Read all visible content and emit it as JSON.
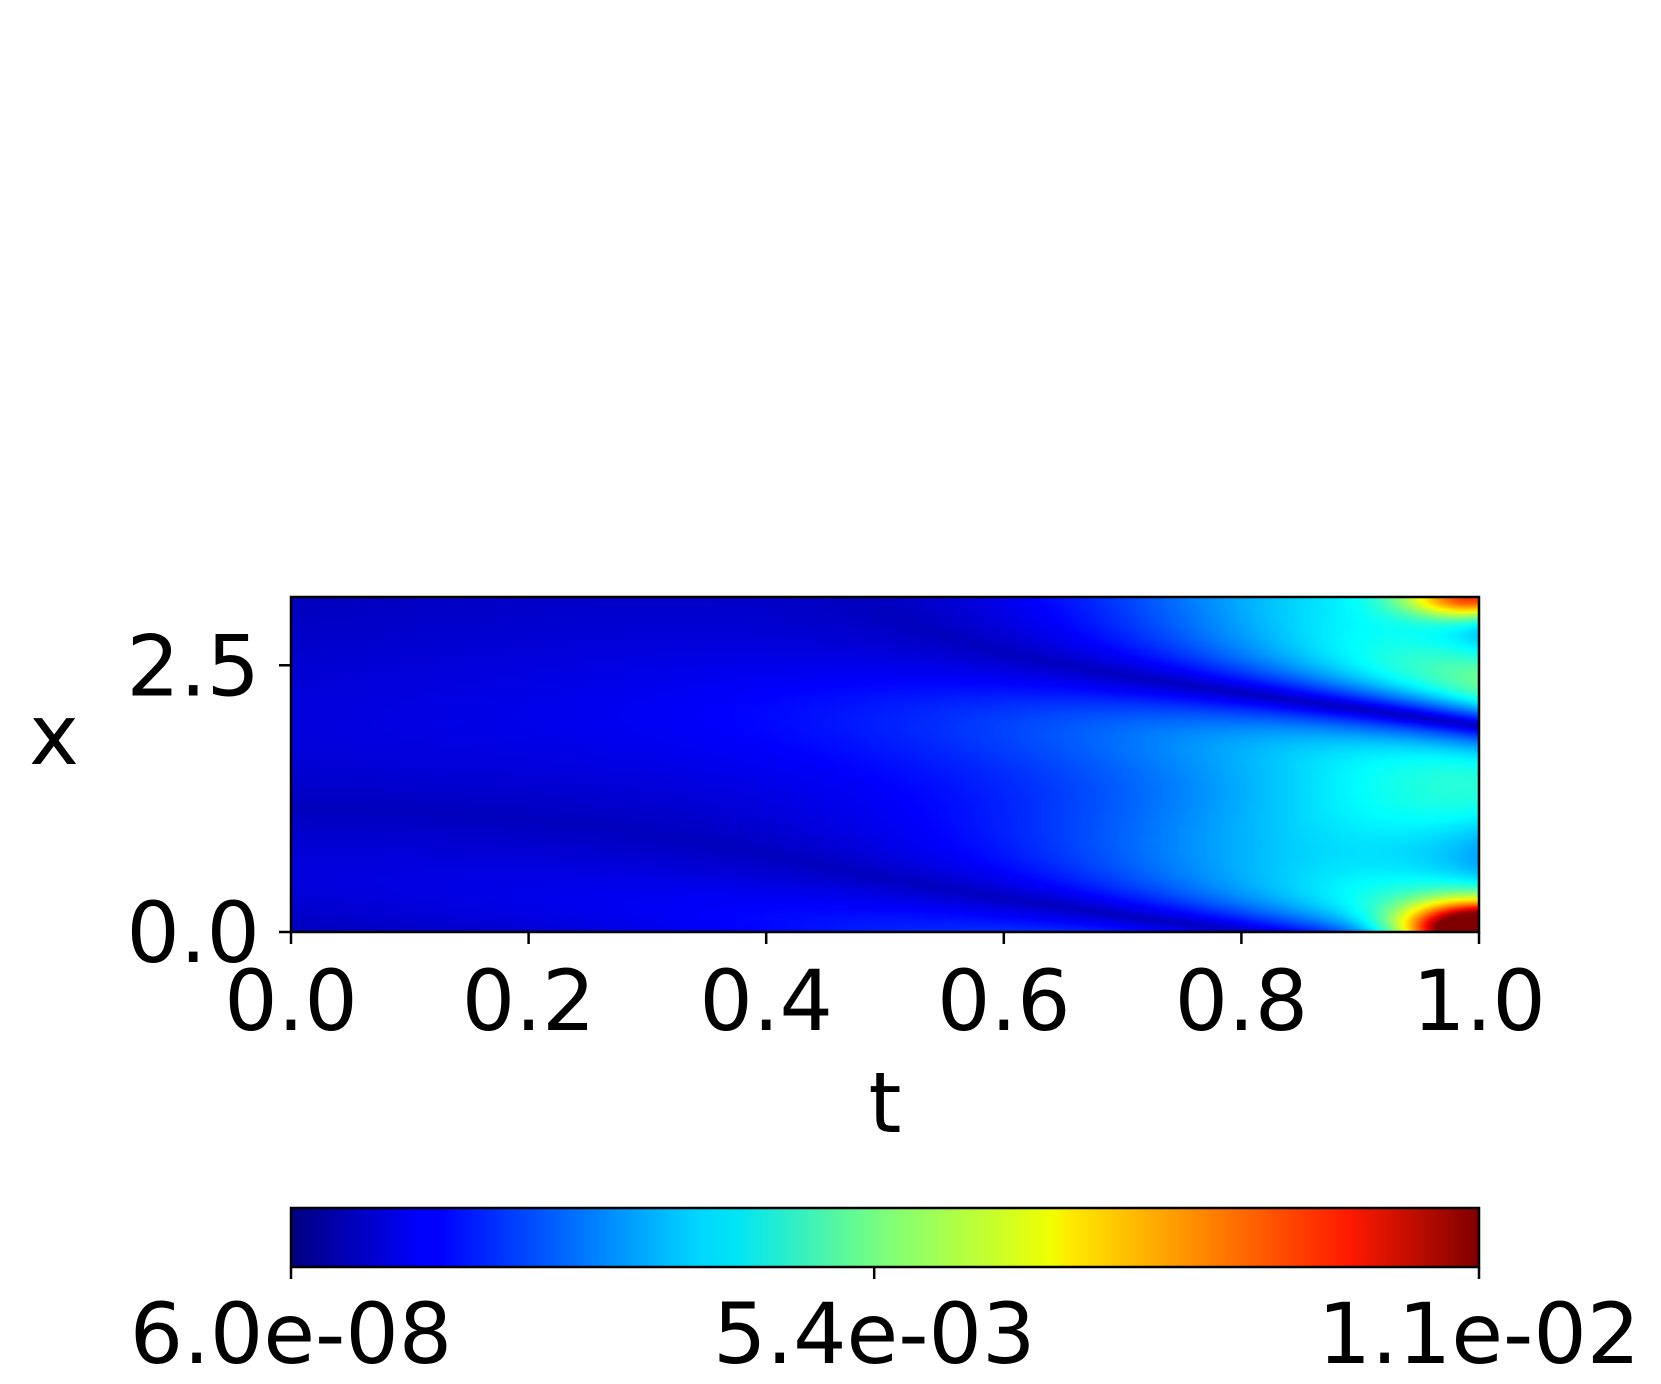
{
  "chart_data": {
    "type": "heatmap",
    "title": "",
    "xlabel": "t",
    "ylabel": "x",
    "xlim": [
      0.0,
      1.0
    ],
    "ylim": [
      0.0,
      3.14
    ],
    "x_ticks": [
      {
        "value": 0.0,
        "label": "0.0"
      },
      {
        "value": 0.2,
        "label": "0.2"
      },
      {
        "value": 0.4,
        "label": "0.4"
      },
      {
        "value": 0.6,
        "label": "0.6"
      },
      {
        "value": 0.8,
        "label": "0.8"
      },
      {
        "value": 1.0,
        "label": "1.0"
      }
    ],
    "y_ticks": [
      {
        "value": 0.0,
        "label": "0.0"
      },
      {
        "value": 2.5,
        "label": "2.5"
      }
    ],
    "colormap": "jet",
    "colorbar": {
      "orientation": "horizontal",
      "placement": "bottom",
      "range": [
        6e-08,
        0.011
      ],
      "ticks": [
        {
          "value": 6e-08,
          "label": "6.0e-08"
        },
        {
          "value": 0.0054,
          "label": "5.4e-03"
        },
        {
          "value": 0.011,
          "label": "1.1e-02"
        }
      ]
    },
    "grid": false,
    "features": [
      {
        "t": 0.98,
        "x": 0.05,
        "value": 0.011
      },
      {
        "t": 0.98,
        "x": 3.1,
        "value": 0.008
      },
      {
        "t": 0.97,
        "x": 1.75,
        "value": 0.0045
      },
      {
        "t": 0.85,
        "x": 2.9,
        "value": 0.0035
      },
      {
        "t": 0.88,
        "x": 0.9,
        "value": 0.003
      },
      {
        "t": 0.65,
        "x": 2.5,
        "value": 0.0015
      }
    ]
  }
}
